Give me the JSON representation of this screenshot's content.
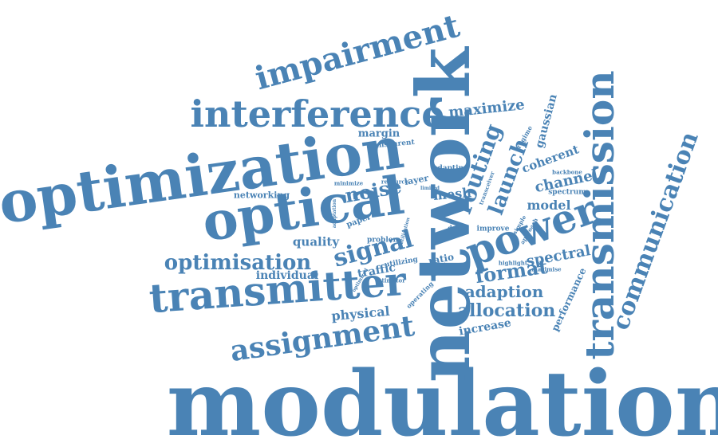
{
  "color": "#4a83b5",
  "words": [
    "modulation",
    "network",
    "optimization",
    "optical",
    "transmitter",
    "transmission",
    "interference",
    "power",
    "impairment",
    "assignment",
    "communication",
    "optimisation",
    "signal",
    "routing",
    "launch",
    "noise",
    "format",
    "adaption",
    "allocation",
    "maximize",
    "spectral",
    "channel",
    "model",
    "mesh",
    "coherent",
    "gaussian",
    "physical",
    "quality",
    "traffic",
    "individual",
    "increase",
    "performance",
    "margin",
    "networking",
    "transparent",
    "layer",
    "ratio",
    "adapting",
    "spectrum",
    "improve",
    "backbone",
    "paper",
    "problem",
    "utilizing",
    "resource",
    "regime",
    "work",
    "estimator",
    "operating",
    "highlight",
    "maximise",
    "transceiver",
    "approach",
    "simple",
    "data",
    "minimize",
    "adaptation",
    "optimized",
    "utilization",
    "limited"
  ]
}
